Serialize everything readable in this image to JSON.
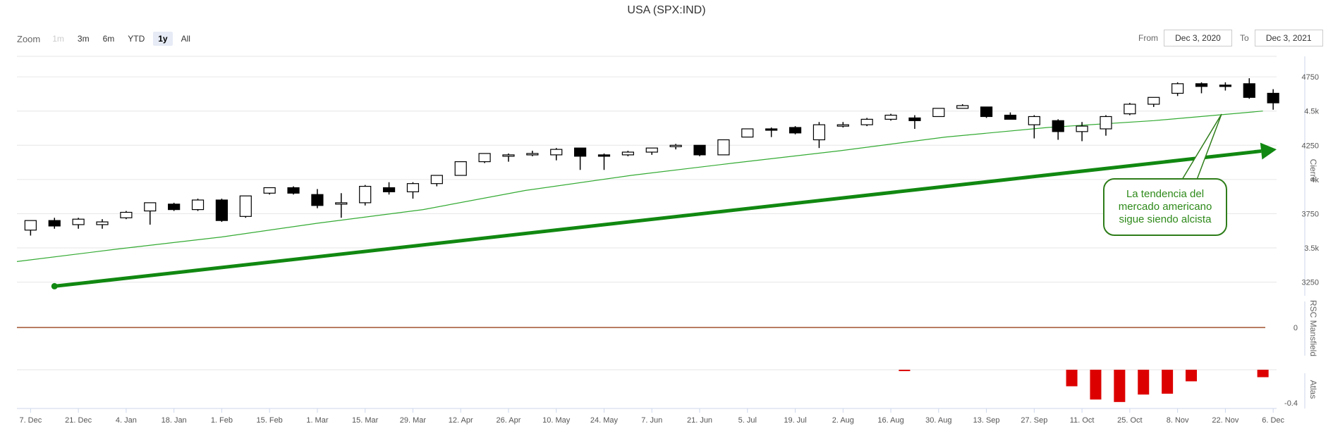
{
  "page": {
    "title": "USA (SPX:IND)",
    "zoom": {
      "label": "Zoom",
      "buttons": [
        "1m",
        "3m",
        "6m",
        "YTD",
        "1y",
        "All"
      ],
      "active": "1y",
      "disabled": [
        "1m"
      ]
    },
    "range": {
      "from_label": "From",
      "from_value": "Dec 3, 2020",
      "to_label": "To",
      "to_value": "Dec 3, 2021"
    },
    "annotation": "La tendencia del\nmercado americano\nsigue siendo alcista"
  },
  "colors": {
    "up_candle": "#ffffff",
    "down_candle": "#000000",
    "moving_average": "#33aa33",
    "trend_arrow": "#118811",
    "rsc_line": "#a0522d",
    "atlas_bars": "#dd0000",
    "grid": "#e6e6e6",
    "annotation_border": "#2e7d1a"
  },
  "chart_data": [
    {
      "type": "candlestick",
      "title": "USA (SPX:IND)",
      "ylabel": "Cierre",
      "ylim": [
        3150,
        4900
      ],
      "ytick_labels": [
        "3250",
        "3.5k",
        "3750",
        "4k",
        "4250",
        "4.5k",
        "4750"
      ],
      "ytick_values": [
        3250,
        3500,
        3750,
        4000,
        4250,
        4500,
        4750
      ],
      "x_start": "2020-12-03",
      "x_end": "2021-12-07",
      "xtick_labels": [
        "7. Dec",
        "21. Dec",
        "4. Jan",
        "18. Jan",
        "1. Feb",
        "15. Feb",
        "1. Mar",
        "15. Mar",
        "29. Mar",
        "12. Apr",
        "26. Apr",
        "10. May",
        "24. May",
        "7. Jun",
        "21. Jun",
        "5. Jul",
        "19. Jul",
        "2. Aug",
        "16. Aug",
        "30. Aug",
        "13. Sep",
        "27. Sep",
        "11. Oct",
        "25. Oct",
        "8. Nov",
        "22. Nov",
        "6. Dec"
      ],
      "xtick_dates": [
        "2020-12-07",
        "2020-12-21",
        "2021-01-04",
        "2021-01-18",
        "2021-02-01",
        "2021-02-15",
        "2021-03-01",
        "2021-03-15",
        "2021-03-29",
        "2021-04-12",
        "2021-04-26",
        "2021-05-10",
        "2021-05-24",
        "2021-06-07",
        "2021-06-21",
        "2021-07-05",
        "2021-07-19",
        "2021-08-02",
        "2021-08-16",
        "2021-08-30",
        "2021-09-13",
        "2021-09-27",
        "2021-10-11",
        "2021-10-25",
        "2021-11-08",
        "2021-11-22",
        "2021-12-06"
      ],
      "candles": [
        {
          "date": "2020-12-07",
          "open": 3630,
          "high": 3700,
          "low": 3590,
          "close": 3700
        },
        {
          "date": "2020-12-14",
          "open": 3700,
          "high": 3720,
          "low": 3640,
          "close": 3660
        },
        {
          "date": "2020-12-21",
          "open": 3670,
          "high": 3720,
          "low": 3640,
          "close": 3710
        },
        {
          "date": "2020-12-28",
          "open": 3670,
          "high": 3710,
          "low": 3640,
          "close": 3690
        },
        {
          "date": "2021-01-04",
          "open": 3720,
          "high": 3770,
          "low": 3710,
          "close": 3760
        },
        {
          "date": "2021-01-11",
          "open": 3770,
          "high": 3830,
          "low": 3670,
          "close": 3830
        },
        {
          "date": "2021-01-18",
          "open": 3820,
          "high": 3830,
          "low": 3770,
          "close": 3780
        },
        {
          "date": "2021-01-25",
          "open": 3780,
          "high": 3860,
          "low": 3770,
          "close": 3850
        },
        {
          "date": "2021-02-01",
          "open": 3850,
          "high": 3860,
          "low": 3690,
          "close": 3700
        },
        {
          "date": "2021-02-08",
          "open": 3730,
          "high": 3880,
          "low": 3720,
          "close": 3880
        },
        {
          "date": "2021-02-15",
          "open": 3900,
          "high": 3940,
          "low": 3890,
          "close": 3940
        },
        {
          "date": "2021-02-22",
          "open": 3940,
          "high": 3950,
          "low": 3890,
          "close": 3900
        },
        {
          "date": "2021-03-01",
          "open": 3890,
          "high": 3930,
          "low": 3790,
          "close": 3810
        },
        {
          "date": "2021-03-08",
          "open": 3830,
          "high": 3900,
          "low": 3720,
          "close": 3830
        },
        {
          "date": "2021-03-15",
          "open": 3830,
          "high": 3960,
          "low": 3810,
          "close": 3950
        },
        {
          "date": "2021-03-22",
          "open": 3940,
          "high": 3980,
          "low": 3890,
          "close": 3910
        },
        {
          "date": "2021-03-29",
          "open": 3910,
          "high": 3980,
          "low": 3860,
          "close": 3970
        },
        {
          "date": "2021-04-05",
          "open": 3970,
          "high": 4030,
          "low": 3950,
          "close": 4030
        },
        {
          "date": "2021-04-12",
          "open": 4030,
          "high": 4130,
          "low": 4030,
          "close": 4130
        },
        {
          "date": "2021-04-19",
          "open": 4130,
          "high": 4190,
          "low": 4120,
          "close": 4190
        },
        {
          "date": "2021-04-26",
          "open": 4180,
          "high": 4190,
          "low": 4130,
          "close": 4180
        },
        {
          "date": "2021-05-03",
          "open": 4180,
          "high": 4210,
          "low": 4170,
          "close": 4190
        },
        {
          "date": "2021-05-10",
          "open": 4180,
          "high": 4230,
          "low": 4140,
          "close": 4220
        },
        {
          "date": "2021-05-17",
          "open": 4230,
          "high": 4230,
          "low": 4070,
          "close": 4170
        },
        {
          "date": "2021-05-24",
          "open": 4180,
          "high": 4190,
          "low": 4070,
          "close": 4170
        },
        {
          "date": "2021-05-31",
          "open": 4180,
          "high": 4210,
          "low": 4170,
          "close": 4200
        },
        {
          "date": "2021-06-07",
          "open": 4200,
          "high": 4230,
          "low": 4180,
          "close": 4230
        },
        {
          "date": "2021-06-14",
          "open": 4240,
          "high": 4260,
          "low": 4220,
          "close": 4250
        },
        {
          "date": "2021-06-21",
          "open": 4250,
          "high": 4250,
          "low": 4170,
          "close": 4180
        },
        {
          "date": "2021-06-28",
          "open": 4180,
          "high": 4290,
          "low": 4180,
          "close": 4290
        },
        {
          "date": "2021-07-05",
          "open": 4310,
          "high": 4370,
          "low": 4310,
          "close": 4370
        },
        {
          "date": "2021-07-12",
          "open": 4370,
          "high": 4380,
          "low": 4310,
          "close": 4360
        },
        {
          "date": "2021-07-19",
          "open": 4380,
          "high": 4390,
          "low": 4330,
          "close": 4340
        },
        {
          "date": "2021-07-26",
          "open": 4290,
          "high": 4420,
          "low": 4230,
          "close": 4400
        },
        {
          "date": "2021-08-02",
          "open": 4400,
          "high": 4420,
          "low": 4380,
          "close": 4400
        },
        {
          "date": "2021-08-09",
          "open": 4400,
          "high": 4450,
          "low": 4390,
          "close": 4440
        },
        {
          "date": "2021-08-16",
          "open": 4440,
          "high": 4480,
          "low": 4430,
          "close": 4470
        },
        {
          "date": "2021-08-23",
          "open": 4450,
          "high": 4470,
          "low": 4370,
          "close": 4430
        },
        {
          "date": "2021-08-30",
          "open": 4460,
          "high": 4520,
          "low": 4460,
          "close": 4520
        },
        {
          "date": "2021-09-06",
          "open": 4520,
          "high": 4550,
          "low": 4520,
          "close": 4540
        },
        {
          "date": "2021-09-13",
          "open": 4530,
          "high": 4530,
          "low": 4450,
          "close": 4460
        },
        {
          "date": "2021-09-20",
          "open": 4470,
          "high": 4490,
          "low": 4440,
          "close": 4440
        },
        {
          "date": "2021-09-27",
          "open": 4400,
          "high": 4470,
          "low": 4300,
          "close": 4460
        },
        {
          "date": "2021-10-04",
          "open": 4430,
          "high": 4440,
          "low": 4290,
          "close": 4350
        },
        {
          "date": "2021-10-11",
          "open": 4350,
          "high": 4420,
          "low": 4280,
          "close": 4390
        },
        {
          "date": "2021-10-18",
          "open": 4370,
          "high": 4470,
          "low": 4320,
          "close": 4460
        },
        {
          "date": "2021-10-25",
          "open": 4480,
          "high": 4560,
          "low": 4470,
          "close": 4550
        },
        {
          "date": "2021-11-01",
          "open": 4550,
          "high": 4600,
          "low": 4530,
          "close": 4600
        },
        {
          "date": "2021-11-08",
          "open": 4630,
          "high": 4710,
          "low": 4610,
          "close": 4700
        },
        {
          "date": "2021-11-15",
          "open": 4700,
          "high": 4710,
          "low": 4630,
          "close": 4680
        },
        {
          "date": "2021-11-22",
          "open": 4690,
          "high": 4710,
          "low": 4650,
          "close": 4680
        },
        {
          "date": "2021-11-29",
          "open": 4700,
          "high": 4740,
          "low": 4590,
          "close": 4600
        },
        {
          "date": "2021-12-06",
          "open": 4630,
          "high": 4660,
          "low": 4510,
          "close": 4560
        }
      ],
      "moving_average": {
        "dates": [
          "2020-12-03",
          "2021-01-01",
          "2021-02-01",
          "2021-03-01",
          "2021-04-01",
          "2021-05-01",
          "2021-06-01",
          "2021-07-01",
          "2021-08-01",
          "2021-09-01",
          "2021-10-01",
          "2021-11-01",
          "2021-12-03"
        ],
        "values": [
          3400,
          3490,
          3580,
          3680,
          3780,
          3920,
          4030,
          4120,
          4210,
          4310,
          4380,
          4430,
          4500
        ]
      },
      "trend_arrow": {
        "from": {
          "date": "2020-12-14",
          "value": 3220
        },
        "to": {
          "date": "2021-12-07",
          "value": 4220
        }
      }
    },
    {
      "type": "line",
      "ylabel": "RSC Mansfield",
      "ytick_labels": [
        "0"
      ],
      "x": [
        "2020-12-03",
        "2021-12-03"
      ],
      "values": [
        0,
        0
      ]
    },
    {
      "type": "bar",
      "ylabel": "Atlas",
      "ytick_labels": [
        "-0.4"
      ],
      "ylim": [
        -0.4,
        0
      ],
      "x": [
        "2021-08-20",
        "2021-10-08",
        "2021-10-22",
        "2021-11-05",
        "2021-11-19",
        "2021-12-03"
      ],
      "bars": [
        {
          "date": "2021-08-20",
          "value": -0.01
        },
        {
          "date": "2021-10-08",
          "value": -0.2
        },
        {
          "date": "2021-10-15",
          "value": -0.36
        },
        {
          "date": "2021-10-22",
          "value": -0.39
        },
        {
          "date": "2021-10-29",
          "value": -0.3
        },
        {
          "date": "2021-11-05",
          "value": -0.29
        },
        {
          "date": "2021-11-12",
          "value": -0.14
        },
        {
          "date": "2021-12-03",
          "value": -0.09
        }
      ]
    }
  ]
}
